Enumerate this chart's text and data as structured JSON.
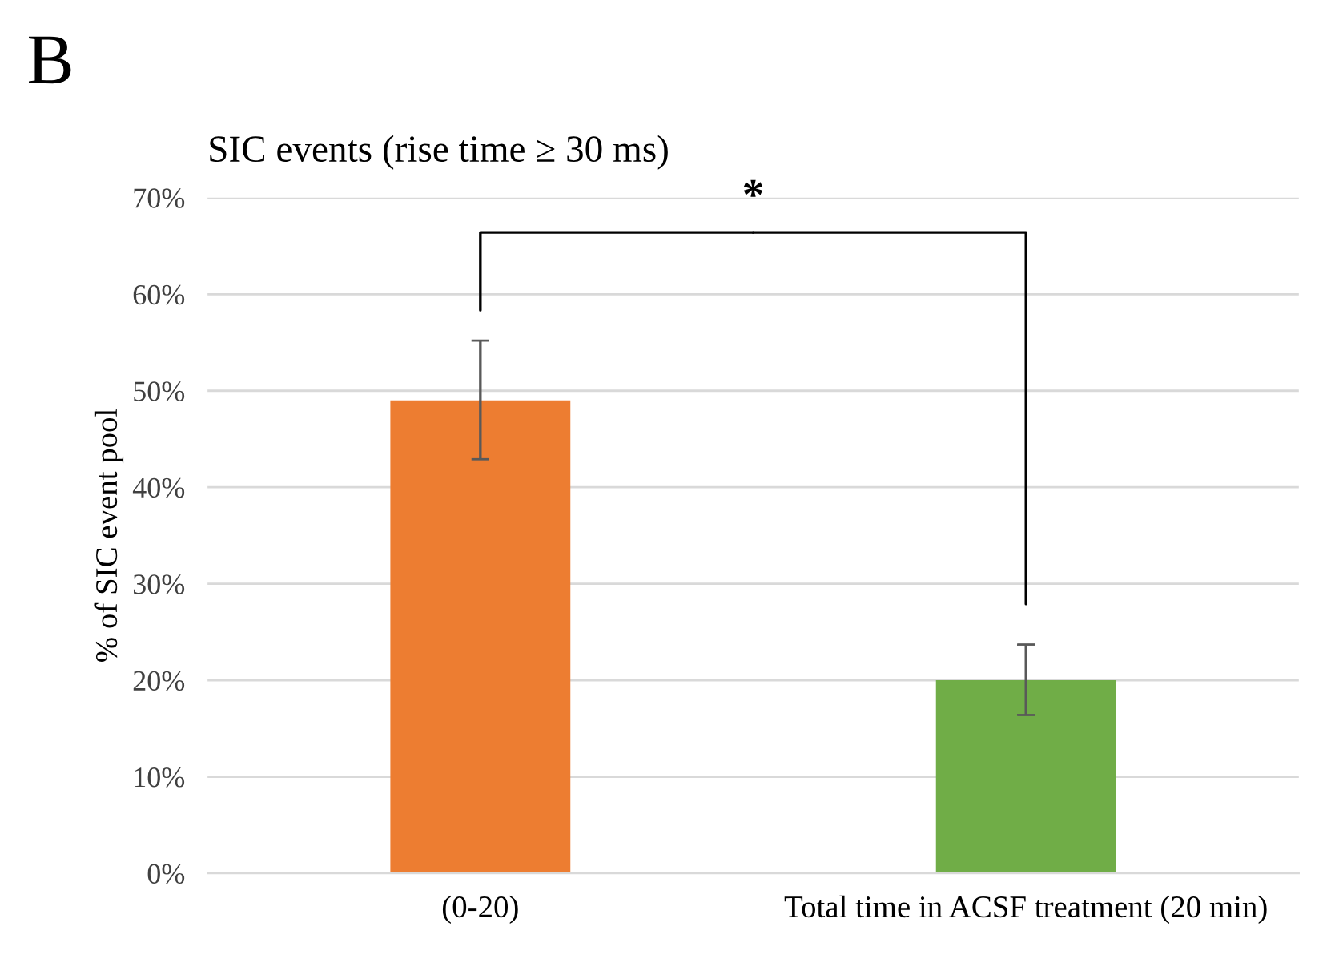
{
  "chart_data": {
    "type": "bar",
    "title": "SIC events (rise time ≥ 30 ms)",
    "ylabel": "% of SIC event pool",
    "categories": [
      "(0-20)",
      "Total time in ACSF treatment (20 min)"
    ],
    "values": [
      49,
      20
    ],
    "colors": [
      "#ed7d31",
      "#70ad47"
    ],
    "errors": [
      [
        42.9,
        55.2
      ],
      [
        16.4,
        23.7
      ]
    ],
    "ylim": [
      0,
      70
    ],
    "yticks": [
      {
        "value": 0,
        "label": "0%"
      },
      {
        "value": 10,
        "label": "10%"
      },
      {
        "value": 20,
        "label": "20%"
      },
      {
        "value": 30,
        "label": "30%"
      },
      {
        "value": 40,
        "label": "40%"
      },
      {
        "value": 50,
        "label": "50%"
      },
      {
        "value": 60,
        "label": "60%"
      },
      {
        "value": 70,
        "label": "70%"
      }
    ],
    "grid": "y",
    "legend": false,
    "annotations": [
      "B",
      "*"
    ]
  }
}
